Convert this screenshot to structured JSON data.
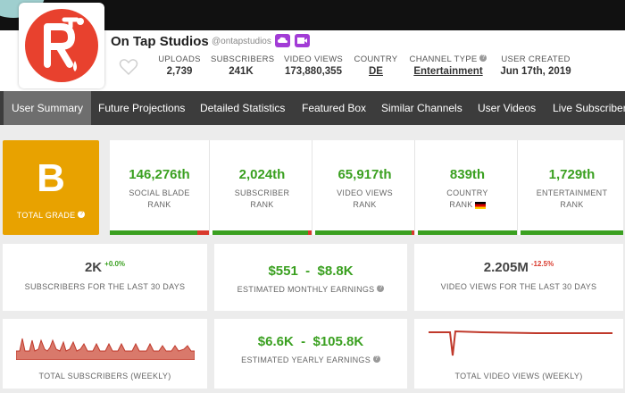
{
  "channel": {
    "name": "On Tap Studios",
    "handle": "@ontapstudios",
    "favorite_icon": "heart-outline-icon",
    "badges": [
      "storage-icon",
      "video-camera-icon"
    ],
    "logo_colors": {
      "accent": "#e8412e"
    }
  },
  "stats": [
    {
      "label": "UPLOADS",
      "value": "2,739"
    },
    {
      "label": "SUBSCRIBERS",
      "value": "241K"
    },
    {
      "label": "VIDEO VIEWS",
      "value": "173,880,355"
    },
    {
      "label": "COUNTRY",
      "value": "DE"
    },
    {
      "label": "CHANNEL TYPE",
      "value": "Entertainment"
    },
    {
      "label": "USER CREATED",
      "value": "Jun 17th, 2019"
    }
  ],
  "nav": {
    "items": [
      "User Summary",
      "Future Projections",
      "Detailed Statistics",
      "Featured Box",
      "Similar Channels",
      "User Videos",
      "Live Subscriber Co"
    ],
    "active": "User Summary"
  },
  "grade": {
    "letter": "B",
    "label": "TOTAL GRADE",
    "color": "#e8a200"
  },
  "ranks": [
    {
      "value": "146,276th",
      "line1": "SOCIAL BLADE",
      "line2": "RANK",
      "red_fraction": 0.12
    },
    {
      "value": "2,024th",
      "line1": "SUBSCRIBER",
      "line2": "RANK",
      "red_fraction": 0.04
    },
    {
      "value": "65,917th",
      "line1": "VIDEO VIEWS",
      "line2": "RANK",
      "red_fraction": 0.03
    },
    {
      "value": "839th",
      "line1": "COUNTRY",
      "line2": "RANK",
      "red_fraction": 0.0
    },
    {
      "value": "1,729th",
      "line1": "ENTERTAINMENT",
      "line2": "RANK",
      "red_fraction": 0.0
    }
  ],
  "summary": {
    "subs_30": {
      "value": "2K",
      "delta": "+0.0%",
      "label": "SUBSCRIBERS FOR THE LAST 30 DAYS"
    },
    "monthly_earnings": {
      "value": "$551  -  $8.8K",
      "label": "ESTIMATED MONTHLY EARNINGS"
    },
    "views_30": {
      "value": "2.205M",
      "delta": "-12.5%",
      "label": "VIDEO VIEWS FOR THE LAST 30 DAYS"
    },
    "total_subs": {
      "label": "TOTAL SUBSCRIBERS (WEEKLY)"
    },
    "yearly_earnings": {
      "value": "$6.6K  -  $105.8K",
      "label": "ESTIMATED YEARLY EARNINGS"
    },
    "total_views": {
      "label": "TOTAL VIDEO VIEWS (WEEKLY)"
    }
  },
  "colors": {
    "green": "#3aa020",
    "red": "#d9392c",
    "nav_bg": "#3c3c3c",
    "nav_active": "#6e6e6e"
  }
}
